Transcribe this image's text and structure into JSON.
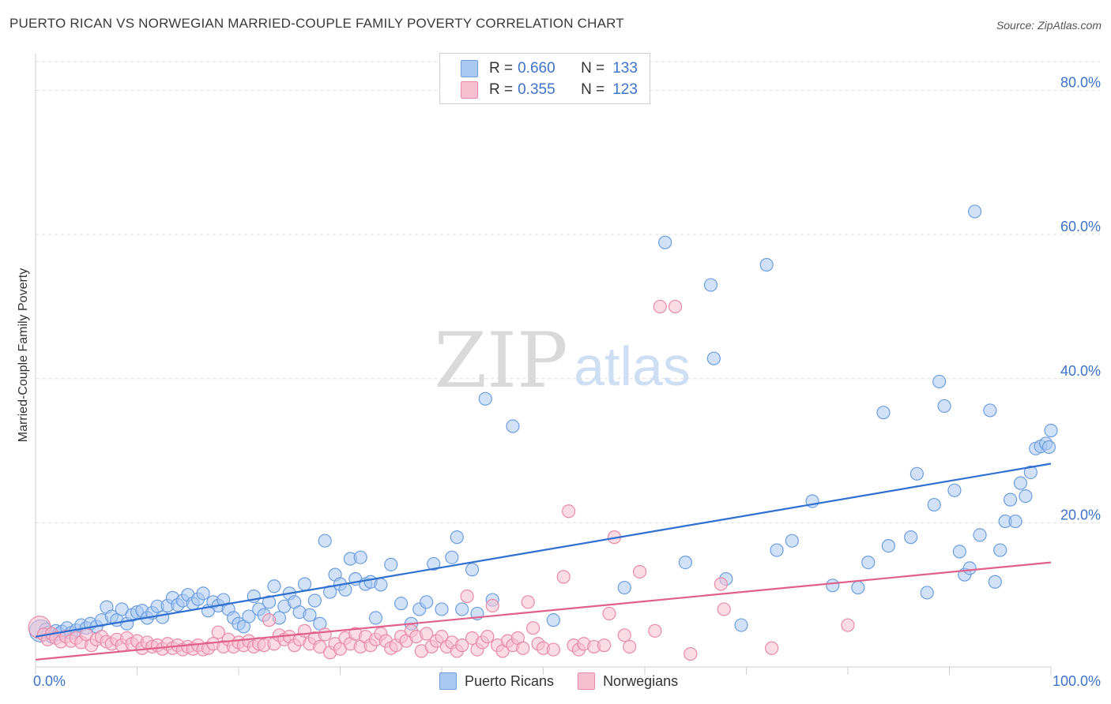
{
  "title": "PUERTO RICAN VS NORWEGIAN MARRIED-COUPLE FAMILY POVERTY CORRELATION CHART",
  "source": "Source: ZipAtlas.com",
  "watermark": {
    "zip": "ZIP",
    "atlas": "atlas"
  },
  "legend": {
    "rows": [
      {
        "r_label": "R =",
        "r_value": "0.660",
        "n_label": "N =",
        "n_value": "133",
        "color": "#a9c8f2",
        "border": "#6e9ee0"
      },
      {
        "r_label": "R =",
        "r_value": "0.355",
        "n_label": "N =",
        "n_value": "123",
        "color": "#f8bfd0",
        "border": "#e88aa8"
      }
    ]
  },
  "bottom_legend": [
    {
      "label": "Puerto Ricans",
      "color": "#a9c8f2",
      "border": "#6e9ee0"
    },
    {
      "label": "Norwegians",
      "color": "#f8bfd0",
      "border": "#e88aa8"
    }
  ],
  "chart_data": {
    "type": "scatter",
    "title": "PUERTO RICAN VS NORWEGIAN MARRIED-COUPLE FAMILY POVERTY CORRELATION CHART",
    "xlabel": "",
    "ylabel": "Married-Couple Family Poverty",
    "xlim": [
      0,
      100
    ],
    "ylim": [
      0,
      84
    ],
    "x_tick_labels": [
      "0.0%",
      "100.0%"
    ],
    "y_ticks": [
      20,
      40,
      60,
      80
    ],
    "y_tick_labels": [
      "20.0%",
      "40.0%",
      "60.0%",
      "80.0%"
    ],
    "grid": true,
    "series": [
      {
        "name": "Puerto Ricans",
        "color": "#6e9ee0",
        "fill": "#a9c8f2",
        "trend": {
          "x": [
            0,
            100
          ],
          "y": [
            4.2,
            28.2
          ],
          "color": "#2f6fd0"
        },
        "points": [
          [
            0.5,
            5.0
          ],
          [
            0.8,
            4.5
          ],
          [
            1.0,
            5.2
          ],
          [
            1.3,
            4.8
          ],
          [
            1.6,
            4.2
          ],
          [
            2.0,
            5.0
          ],
          [
            2.3,
            4.6
          ],
          [
            2.6,
            4.9
          ],
          [
            3.1,
            5.4
          ],
          [
            3.5,
            4.7
          ],
          [
            4.0,
            5.1
          ],
          [
            4.5,
            5.8
          ],
          [
            5.0,
            5.4
          ],
          [
            5.4,
            6.0
          ],
          [
            6.0,
            5.6
          ],
          [
            6.5,
            6.5
          ],
          [
            7.0,
            8.3
          ],
          [
            7.5,
            7.0
          ],
          [
            8.0,
            6.5
          ],
          [
            8.5,
            8.0
          ],
          [
            9.0,
            6.0
          ],
          [
            9.5,
            7.2
          ],
          [
            10.0,
            7.6
          ],
          [
            10.5,
            7.8
          ],
          [
            11.0,
            6.8
          ],
          [
            11.5,
            7.5
          ],
          [
            12.0,
            8.4
          ],
          [
            12.5,
            6.9
          ],
          [
            13.0,
            8.5
          ],
          [
            13.5,
            9.6
          ],
          [
            14.0,
            8.6
          ],
          [
            14.5,
            9.2
          ],
          [
            15.0,
            10.0
          ],
          [
            15.5,
            8.8
          ],
          [
            16.0,
            9.4
          ],
          [
            16.5,
            10.2
          ],
          [
            17.0,
            7.8
          ],
          [
            17.5,
            9.0
          ],
          [
            18.0,
            8.5
          ],
          [
            18.5,
            9.3
          ],
          [
            19.0,
            8.0
          ],
          [
            19.5,
            6.8
          ],
          [
            20.0,
            6.0
          ],
          [
            20.5,
            5.6
          ],
          [
            21.0,
            7.0
          ],
          [
            21.5,
            9.8
          ],
          [
            22.0,
            8.0
          ],
          [
            22.5,
            7.2
          ],
          [
            23.0,
            9.0
          ],
          [
            23.5,
            11.2
          ],
          [
            24.0,
            6.8
          ],
          [
            24.5,
            8.4
          ],
          [
            25.0,
            10.2
          ],
          [
            25.5,
            9.0
          ],
          [
            26.0,
            7.6
          ],
          [
            26.5,
            11.5
          ],
          [
            27.0,
            7.2
          ],
          [
            27.5,
            9.2
          ],
          [
            28.0,
            6.0
          ],
          [
            28.5,
            17.5
          ],
          [
            29.0,
            10.4
          ],
          [
            29.5,
            12.8
          ],
          [
            30.0,
            11.5
          ],
          [
            30.5,
            10.7
          ],
          [
            31.0,
            15.0
          ],
          [
            31.5,
            12.2
          ],
          [
            32.0,
            15.2
          ],
          [
            32.5,
            11.5
          ],
          [
            33.0,
            11.8
          ],
          [
            33.5,
            6.8
          ],
          [
            34.0,
            11.4
          ],
          [
            35.0,
            14.2
          ],
          [
            36.0,
            8.8
          ],
          [
            37.0,
            6.0
          ],
          [
            37.8,
            8.0
          ],
          [
            38.5,
            9.0
          ],
          [
            39.2,
            14.3
          ],
          [
            40.0,
            8.0
          ],
          [
            41.0,
            15.2
          ],
          [
            41.5,
            18.0
          ],
          [
            42.0,
            8.0
          ],
          [
            43.0,
            13.5
          ],
          [
            43.5,
            7.4
          ],
          [
            44.3,
            37.2
          ],
          [
            45.0,
            9.3
          ],
          [
            47.0,
            33.4
          ],
          [
            51.0,
            6.5
          ],
          [
            58.0,
            11.0
          ],
          [
            62.0,
            58.9
          ],
          [
            64.0,
            14.5
          ],
          [
            66.5,
            53.0
          ],
          [
            66.8,
            42.8
          ],
          [
            68.0,
            12.2
          ],
          [
            69.5,
            5.8
          ],
          [
            72.0,
            55.8
          ],
          [
            73.0,
            16.2
          ],
          [
            74.5,
            17.5
          ],
          [
            76.5,
            23.0
          ],
          [
            78.5,
            11.3
          ],
          [
            81.0,
            11.0
          ],
          [
            82.0,
            14.5
          ],
          [
            83.5,
            35.3
          ],
          [
            84.0,
            16.8
          ],
          [
            86.2,
            18.0
          ],
          [
            86.8,
            26.8
          ],
          [
            87.8,
            10.3
          ],
          [
            88.5,
            22.5
          ],
          [
            89.0,
            39.6
          ],
          [
            89.5,
            36.2
          ],
          [
            90.5,
            24.5
          ],
          [
            91.0,
            16.0
          ],
          [
            91.5,
            12.8
          ],
          [
            92.0,
            13.7
          ],
          [
            92.5,
            63.2
          ],
          [
            93.0,
            18.3
          ],
          [
            94.0,
            35.6
          ],
          [
            94.5,
            11.8
          ],
          [
            95.0,
            16.2
          ],
          [
            95.5,
            20.2
          ],
          [
            96.0,
            23.2
          ],
          [
            96.5,
            20.2
          ],
          [
            97.0,
            25.5
          ],
          [
            97.5,
            23.7
          ],
          [
            98.0,
            27.0
          ],
          [
            98.5,
            30.3
          ],
          [
            99.0,
            30.6
          ],
          [
            99.5,
            31.0
          ],
          [
            99.8,
            30.5
          ],
          [
            100.0,
            32.8
          ]
        ]
      },
      {
        "name": "Norwegians",
        "color": "#e88aa8",
        "fill": "#f8bfd0",
        "trend": {
          "x": [
            0,
            100
          ],
          "y": [
            1.0,
            14.5
          ],
          "color": "#e0608c"
        },
        "points": [
          [
            0.4,
            5.5
          ],
          [
            0.8,
            4.5
          ],
          [
            1.2,
            3.8
          ],
          [
            1.6,
            4.6
          ],
          [
            2.0,
            4.0
          ],
          [
            2.5,
            3.5
          ],
          [
            3.0,
            4.2
          ],
          [
            3.5,
            3.6
          ],
          [
            4.0,
            4.0
          ],
          [
            4.5,
            3.4
          ],
          [
            5.0,
            4.5
          ],
          [
            5.5,
            3.0
          ],
          [
            6.0,
            3.8
          ],
          [
            6.5,
            4.2
          ],
          [
            7.0,
            3.5
          ],
          [
            7.5,
            3.2
          ],
          [
            8.0,
            3.8
          ],
          [
            8.5,
            3.0
          ],
          [
            9.0,
            4.0
          ],
          [
            9.5,
            3.2
          ],
          [
            10.0,
            3.6
          ],
          [
            10.5,
            2.6
          ],
          [
            11.0,
            3.4
          ],
          [
            11.5,
            2.8
          ],
          [
            12.0,
            3.0
          ],
          [
            12.5,
            2.5
          ],
          [
            13.0,
            3.2
          ],
          [
            13.5,
            2.6
          ],
          [
            14.0,
            3.0
          ],
          [
            14.5,
            2.4
          ],
          [
            15.0,
            2.8
          ],
          [
            15.5,
            2.5
          ],
          [
            16.0,
            3.0
          ],
          [
            16.5,
            2.4
          ],
          [
            17.0,
            2.6
          ],
          [
            17.5,
            3.2
          ],
          [
            18.0,
            4.8
          ],
          [
            18.5,
            2.8
          ],
          [
            19.0,
            3.8
          ],
          [
            19.5,
            2.8
          ],
          [
            20.0,
            3.4
          ],
          [
            20.5,
            3.0
          ],
          [
            21.0,
            3.6
          ],
          [
            21.5,
            2.8
          ],
          [
            22.0,
            3.2
          ],
          [
            22.5,
            3.0
          ],
          [
            23.0,
            6.5
          ],
          [
            23.5,
            3.2
          ],
          [
            24.0,
            4.4
          ],
          [
            24.5,
            3.8
          ],
          [
            25.0,
            4.2
          ],
          [
            25.5,
            3.0
          ],
          [
            26.0,
            3.8
          ],
          [
            26.5,
            5.0
          ],
          [
            27.0,
            3.2
          ],
          [
            27.5,
            4.0
          ],
          [
            28.0,
            2.8
          ],
          [
            28.5,
            4.5
          ],
          [
            29.0,
            2.0
          ],
          [
            29.5,
            3.2
          ],
          [
            30.0,
            2.5
          ],
          [
            30.5,
            4.0
          ],
          [
            31.0,
            3.2
          ],
          [
            31.5,
            4.6
          ],
          [
            32.0,
            2.8
          ],
          [
            32.5,
            4.2
          ],
          [
            33.0,
            3.0
          ],
          [
            33.5,
            3.8
          ],
          [
            34.0,
            4.6
          ],
          [
            34.5,
            3.6
          ],
          [
            35.0,
            2.6
          ],
          [
            35.5,
            3.0
          ],
          [
            36.0,
            4.2
          ],
          [
            36.5,
            3.6
          ],
          [
            37.0,
            5.0
          ],
          [
            37.5,
            4.2
          ],
          [
            38.0,
            2.2
          ],
          [
            38.5,
            4.6
          ],
          [
            39.0,
            2.8
          ],
          [
            39.5,
            3.6
          ],
          [
            40.0,
            4.2
          ],
          [
            40.5,
            2.8
          ],
          [
            41.0,
            3.4
          ],
          [
            41.5,
            2.2
          ],
          [
            42.0,
            3.0
          ],
          [
            42.5,
            9.8
          ],
          [
            43.0,
            4.0
          ],
          [
            43.5,
            2.4
          ],
          [
            44.0,
            3.4
          ],
          [
            44.5,
            4.2
          ],
          [
            45.0,
            8.5
          ],
          [
            45.5,
            3.0
          ],
          [
            46.0,
            2.2
          ],
          [
            46.5,
            3.6
          ],
          [
            47.0,
            3.0
          ],
          [
            47.5,
            4.0
          ],
          [
            48.0,
            2.6
          ],
          [
            48.5,
            9.0
          ],
          [
            49.0,
            5.4
          ],
          [
            49.5,
            3.2
          ],
          [
            50.0,
            2.6
          ],
          [
            51.0,
            2.4
          ],
          [
            52.0,
            12.5
          ],
          [
            52.5,
            21.6
          ],
          [
            53.0,
            3.0
          ],
          [
            53.5,
            2.4
          ],
          [
            54.0,
            3.2
          ],
          [
            55.0,
            2.8
          ],
          [
            56.0,
            3.0
          ],
          [
            56.5,
            7.4
          ],
          [
            57.0,
            18.0
          ],
          [
            58.0,
            4.4
          ],
          [
            58.5,
            2.8
          ],
          [
            59.5,
            13.2
          ],
          [
            61.0,
            5.0
          ],
          [
            61.5,
            50.0
          ],
          [
            63.0,
            50.0
          ],
          [
            64.5,
            1.8
          ],
          [
            67.5,
            11.5
          ],
          [
            67.8,
            8.0
          ],
          [
            72.5,
            2.6
          ],
          [
            80.0,
            5.8
          ]
        ]
      }
    ]
  }
}
